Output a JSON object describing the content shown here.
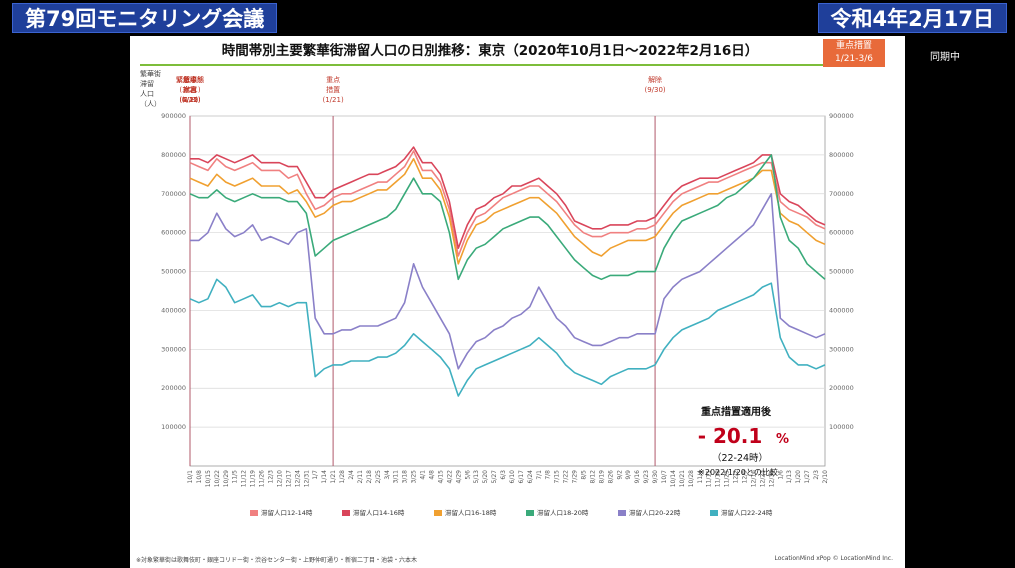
{
  "header": {
    "meeting_title": "第79回モニタリング会議",
    "date": "令和4年2月17日"
  },
  "side_label": "同期中",
  "slide": {
    "title": "時間帯別主要繁華街滞留人口の日別推移：東京（2020年10月1日〜2022年2月16日）",
    "badge_line1": "重点措置",
    "badge_line2": "1/21-3/6",
    "y_axis_label": [
      "繁華街",
      "滞留",
      "人口",
      "（人）"
    ],
    "footnote": "※対象繁華街は歌舞伎町・銀座コリドー街・渋谷センター街・上野仲町通り・新宿二丁目・池袋・六本木",
    "credit": "LocationMind xPop © LocationMind Inc.",
    "summary": {
      "heading": "重点措置適用後",
      "value": "- 20.1",
      "unit": "%",
      "time": "（22-24時）",
      "note": "※2022/1/20との比較"
    }
  },
  "colors": {
    "accent": "#1f3f9a",
    "event_line": "#b0586a",
    "event_text": "#c0392b",
    "emph_badge": "#e86a3a"
  },
  "chart_data": {
    "type": "line",
    "y_ticks": [
      100000,
      200000,
      300000,
      400000,
      500000,
      600000,
      700000,
      800000,
      900000
    ],
    "ylim": [
      0,
      900000
    ],
    "x_tick_labels": [
      "10/1",
      "10/8",
      "10/15",
      "10/22",
      "10/29",
      "11/5",
      "11/12",
      "11/19",
      "11/26",
      "12/3",
      "12/10",
      "12/17",
      "12/24",
      "12/31",
      "1/7",
      "1/14",
      "1/21",
      "1/28",
      "2/4",
      "2/11",
      "2/18",
      "2/25",
      "3/4",
      "3/11",
      "3/18",
      "3/25",
      "4/1",
      "4/8",
      "4/15",
      "4/22",
      "4/29",
      "5/6",
      "5/13",
      "5/20",
      "5/27",
      "6/3",
      "6/10",
      "6/17",
      "6/24",
      "7/1",
      "7/8",
      "7/15",
      "7/22",
      "7/29",
      "8/5",
      "8/12",
      "8/19",
      "8/26",
      "9/2",
      "9/9",
      "9/16",
      "9/23",
      "9/30",
      "10/7",
      "10/14",
      "10/21",
      "10/28",
      "11/4",
      "11/11",
      "11/18",
      "11/25",
      "12/2",
      "12/9",
      "12/16",
      "12/23",
      "12/30",
      "1/6",
      "1/13",
      "1/20",
      "1/27",
      "2/3",
      "2/10"
    ],
    "events": [
      {
        "label": [
          "緊急事態",
          "宣言",
          "(1/8)"
        ],
        "x": "1/8"
      },
      {
        "label": [
          "解除",
          "(3/21)"
        ],
        "x": "3/21"
      },
      {
        "label": [
          "緊急事態",
          "宣言",
          "(4/25)"
        ],
        "x": "4/25"
      },
      {
        "label": [
          "重点",
          "措置",
          "(6/21)"
        ],
        "x": "6/21"
      },
      {
        "label": [
          "緊急事態",
          "宣言",
          "(7/12)"
        ],
        "x": "7/12"
      },
      {
        "label": [
          "解除",
          "(9/30)"
        ],
        "x": "9/30"
      },
      {
        "label": [
          "重点",
          "措置",
          "(1/21)"
        ],
        "x": "1/21"
      }
    ],
    "series": [
      {
        "name": "滞留人口12-14時",
        "color": "#f08080",
        "values": [
          780000,
          770000,
          760000,
          790000,
          770000,
          760000,
          770000,
          780000,
          760000,
          760000,
          760000,
          740000,
          750000,
          700000,
          660000,
          670000,
          690000,
          700000,
          700000,
          710000,
          720000,
          730000,
          730000,
          750000,
          770000,
          810000,
          760000,
          760000,
          730000,
          660000,
          540000,
          600000,
          640000,
          650000,
          670000,
          690000,
          700000,
          710000,
          720000,
          720000,
          700000,
          680000,
          650000,
          620000,
          600000,
          590000,
          590000,
          600000,
          600000,
          600000,
          610000,
          610000,
          620000,
          650000,
          680000,
          700000,
          710000,
          720000,
          730000,
          730000,
          740000,
          750000,
          760000,
          770000,
          780000,
          780000,
          680000,
          660000,
          650000,
          640000,
          620000,
          610000
        ]
      },
      {
        "name": "滞留人口14-16時",
        "color": "#d9455a",
        "values": [
          790000,
          790000,
          780000,
          800000,
          790000,
          780000,
          790000,
          800000,
          780000,
          780000,
          780000,
          770000,
          770000,
          730000,
          690000,
          690000,
          710000,
          720000,
          730000,
          740000,
          750000,
          750000,
          760000,
          770000,
          790000,
          820000,
          780000,
          780000,
          750000,
          680000,
          560000,
          620000,
          660000,
          670000,
          690000,
          700000,
          720000,
          720000,
          730000,
          740000,
          720000,
          700000,
          670000,
          630000,
          620000,
          610000,
          610000,
          620000,
          620000,
          620000,
          630000,
          630000,
          640000,
          670000,
          700000,
          720000,
          730000,
          740000,
          740000,
          740000,
          750000,
          760000,
          770000,
          780000,
          800000,
          800000,
          700000,
          680000,
          670000,
          650000,
          630000,
          620000
        ]
      },
      {
        "name": "滞留人口16-18時",
        "color": "#f0a030",
        "values": [
          740000,
          730000,
          720000,
          750000,
          730000,
          720000,
          730000,
          740000,
          720000,
          720000,
          720000,
          700000,
          710000,
          680000,
          640000,
          650000,
          670000,
          680000,
          680000,
          690000,
          700000,
          710000,
          710000,
          730000,
          750000,
          790000,
          740000,
          740000,
          710000,
          640000,
          520000,
          580000,
          620000,
          630000,
          650000,
          660000,
          670000,
          680000,
          690000,
          690000,
          670000,
          650000,
          620000,
          590000,
          570000,
          550000,
          540000,
          560000,
          570000,
          580000,
          580000,
          580000,
          590000,
          620000,
          650000,
          670000,
          680000,
          690000,
          700000,
          700000,
          710000,
          720000,
          730000,
          740000,
          760000,
          760000,
          650000,
          630000,
          620000,
          600000,
          580000,
          570000
        ]
      },
      {
        "name": "滞留人口18-20時",
        "color": "#3aaa7a",
        "values": [
          700000,
          690000,
          690000,
          710000,
          690000,
          680000,
          690000,
          700000,
          690000,
          690000,
          690000,
          680000,
          680000,
          650000,
          540000,
          560000,
          580000,
          590000,
          600000,
          610000,
          620000,
          630000,
          640000,
          660000,
          700000,
          740000,
          700000,
          700000,
          680000,
          600000,
          480000,
          530000,
          560000,
          570000,
          590000,
          610000,
          620000,
          630000,
          640000,
          640000,
          620000,
          590000,
          560000,
          530000,
          510000,
          490000,
          480000,
          490000,
          490000,
          490000,
          500000,
          500000,
          500000,
          560000,
          600000,
          630000,
          640000,
          650000,
          660000,
          670000,
          690000,
          700000,
          720000,
          740000,
          770000,
          800000,
          640000,
          580000,
          560000,
          520000,
          500000,
          480000
        ]
      },
      {
        "name": "滞留人口20-22時",
        "color": "#8a80c8",
        "values": [
          580000,
          580000,
          600000,
          650000,
          610000,
          590000,
          600000,
          620000,
          580000,
          590000,
          580000,
          570000,
          600000,
          610000,
          380000,
          340000,
          340000,
          350000,
          350000,
          360000,
          360000,
          360000,
          370000,
          380000,
          420000,
          520000,
          460000,
          420000,
          380000,
          340000,
          250000,
          290000,
          320000,
          330000,
          350000,
          360000,
          380000,
          390000,
          410000,
          460000,
          420000,
          380000,
          360000,
          330000,
          320000,
          310000,
          310000,
          320000,
          330000,
          330000,
          340000,
          340000,
          340000,
          430000,
          460000,
          480000,
          490000,
          500000,
          520000,
          540000,
          560000,
          580000,
          600000,
          620000,
          660000,
          700000,
          380000,
          360000,
          350000,
          340000,
          330000,
          340000
        ]
      },
      {
        "name": "滞留人口22-24時",
        "color": "#40b0c0",
        "values": [
          430000,
          420000,
          430000,
          480000,
          460000,
          420000,
          430000,
          440000,
          410000,
          410000,
          420000,
          410000,
          420000,
          420000,
          230000,
          250000,
          260000,
          260000,
          270000,
          270000,
          270000,
          280000,
          280000,
          290000,
          310000,
          340000,
          320000,
          300000,
          280000,
          250000,
          180000,
          220000,
          250000,
          260000,
          270000,
          280000,
          290000,
          300000,
          310000,
          330000,
          310000,
          290000,
          260000,
          240000,
          230000,
          220000,
          210000,
          230000,
          240000,
          250000,
          250000,
          250000,
          260000,
          300000,
          330000,
          350000,
          360000,
          370000,
          380000,
          400000,
          410000,
          420000,
          430000,
          440000,
          460000,
          470000,
          330000,
          280000,
          260000,
          260000,
          250000,
          260000
        ]
      }
    ]
  }
}
